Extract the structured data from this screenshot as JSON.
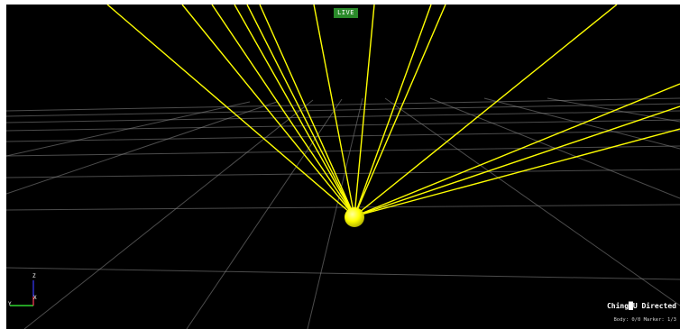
{
  "viewport": {
    "live_label": "LIVE",
    "background_color": "#000000",
    "grid_color": "#9a9a9a",
    "ray_color": "#ffff00",
    "marker_color": "#ffff00",
    "live_badge_color": "#2a8a2a"
  },
  "axes": {
    "z_label": "Z",
    "x_label": "X",
    "y_label": "Y",
    "z_color": "#3a3aff",
    "x_color": "#ff3a3a",
    "y_color": "#3aff3a"
  },
  "footer": {
    "watermark": "Ching█U Directed",
    "stats": "Body: 0/0  Marker: 1/3"
  }
}
